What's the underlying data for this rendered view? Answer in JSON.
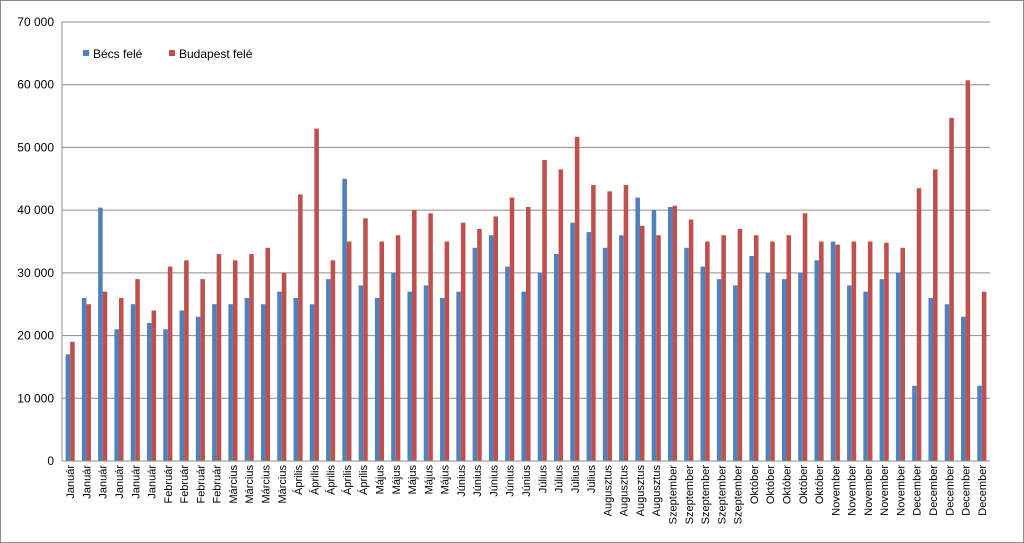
{
  "chart_data": {
    "type": "bar",
    "title": "",
    "xlabel": "",
    "ylabel": "",
    "ylim": [
      0,
      70000
    ],
    "y_ticks": [
      0,
      10000,
      20000,
      30000,
      40000,
      50000,
      60000,
      70000
    ],
    "y_tick_labels": [
      "0",
      "10 000",
      "20 000",
      "30 000",
      "40 000",
      "50 000",
      "60 000",
      "70 000"
    ],
    "grid": true,
    "legend_position": "top-left",
    "categories": [
      "Január",
      "Január",
      "Január",
      "Január",
      "Január",
      "Január",
      "Február",
      "Február",
      "Február",
      "Február",
      "Március",
      "Március",
      "Március",
      "Március",
      "Április",
      "Április",
      "Április",
      "Április",
      "Április",
      "Május",
      "Május",
      "Május",
      "Május",
      "Május",
      "Június",
      "Június",
      "Június",
      "Június",
      "Június",
      "Július",
      "Július",
      "Július",
      "Július",
      "Augusztus",
      "Augusztus",
      "Augusztus",
      "Augusztus",
      "Szeptember",
      "Szeptember",
      "Szeptember",
      "Szeptember",
      "Szeptember",
      "Október",
      "Október",
      "Október",
      "Október",
      "Október",
      "November",
      "November",
      "November",
      "November",
      "November",
      "December",
      "December",
      "December",
      "December",
      "December"
    ],
    "series": [
      {
        "name": "Bécs felé",
        "color": "#4f81bd",
        "values": [
          17000,
          26000,
          40400,
          21000,
          25000,
          22000,
          21000,
          24000,
          23000,
          25000,
          25000,
          26000,
          25000,
          27000,
          26000,
          25000,
          29000,
          45000,
          28000,
          26000,
          30000,
          27000,
          28000,
          26000,
          27000,
          34000,
          36000,
          31000,
          27000,
          30000,
          33000,
          38000,
          36500,
          34000,
          36000,
          42000,
          40000,
          40500,
          34000,
          31000,
          29000,
          28000,
          32700,
          30000,
          29000,
          30000,
          32000,
          35000,
          28000,
          27000,
          29000,
          30000,
          12000,
          26000,
          25000,
          23000,
          12000
        ]
      },
      {
        "name": "Budapest felé",
        "color": "#c0504d",
        "values": [
          19000,
          25000,
          27000,
          26000,
          29000,
          24000,
          31000,
          32000,
          29000,
          33000,
          32000,
          33000,
          34000,
          30000,
          42500,
          53000,
          32000,
          35000,
          38700,
          35000,
          36000,
          40000,
          39500,
          35000,
          38000,
          37000,
          39000,
          42000,
          40500,
          48000,
          46500,
          51700,
          44000,
          43000,
          44000,
          37500,
          36000,
          40700,
          38500,
          35000,
          36000,
          37000,
          36000,
          35000,
          36000,
          39500,
          35000,
          34500,
          35000,
          35000,
          34800,
          34000,
          43500,
          46500,
          54700,
          60700,
          27000
        ]
      }
    ]
  },
  "legend": {
    "items": [
      {
        "label": "Bécs felé",
        "color": "#4f81bd"
      },
      {
        "label": "Budapest felé",
        "color": "#c0504d"
      }
    ]
  }
}
